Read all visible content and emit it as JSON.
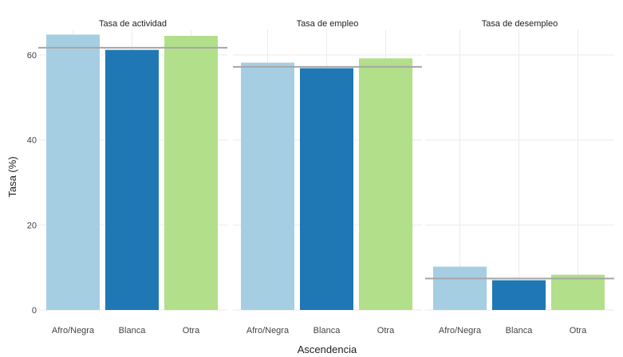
{
  "chart_data": {
    "type": "bar",
    "xlabel": "Ascendencia",
    "ylabel": "Tasa (%)",
    "ylim": [
      0,
      66
    ],
    "yticks": [
      0,
      20,
      40,
      60
    ],
    "categories": [
      "Afro/Negra",
      "Blanca",
      "Otra"
    ],
    "colors": [
      "#a6cee3",
      "#1f78b4",
      "#b2df8a"
    ],
    "reference_line_color": "#a6a6a6",
    "grid": true,
    "legend": "none",
    "panels": [
      {
        "title": "Tasa de actividad",
        "values": [
          64.8,
          61.2,
          64.5
        ],
        "reference": 61.7
      },
      {
        "title": "Tasa de empleo",
        "values": [
          58.2,
          56.9,
          59.2
        ],
        "reference": 57.2
      },
      {
        "title": "Tasa de desempleo",
        "values": [
          10.2,
          7.0,
          8.3
        ],
        "reference": 7.4
      }
    ]
  }
}
